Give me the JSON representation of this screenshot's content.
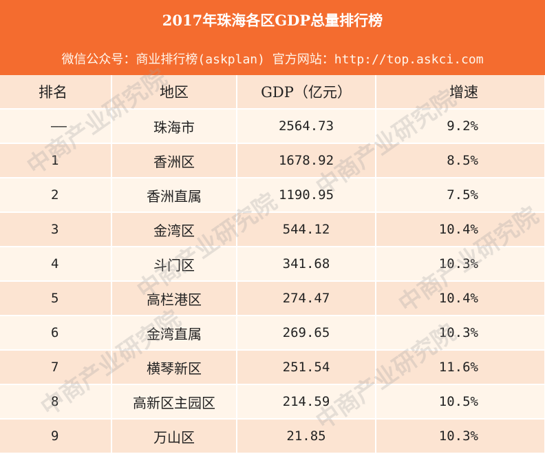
{
  "header": {
    "title": "2017年珠海各区GDP总量排行榜",
    "subtitle": "微信公众号：商业排行榜(askplan)    官方网站：http://top.askci.com",
    "bg_color": "#f46c2f"
  },
  "table": {
    "columns": [
      "排名",
      "地区",
      "GDP（亿元）",
      "增速"
    ],
    "rows": [
      {
        "rank": "——",
        "region": "珠海市",
        "gdp": "2564.73",
        "growth": "9.2%"
      },
      {
        "rank": "1",
        "region": "香洲区",
        "gdp": "1678.92",
        "growth": "8.5%"
      },
      {
        "rank": "2",
        "region": "香洲直属",
        "gdp": "1190.95",
        "growth": "7.5%"
      },
      {
        "rank": "3",
        "region": "金湾区",
        "gdp": "544.12",
        "growth": "10.4%"
      },
      {
        "rank": "4",
        "region": "斗门区",
        "gdp": "341.68",
        "growth": "10.3%"
      },
      {
        "rank": "5",
        "region": "高栏港区",
        "gdp": "274.47",
        "growth": "10.4%"
      },
      {
        "rank": "6",
        "region": "金湾直属",
        "gdp": "269.65",
        "growth": "10.3%"
      },
      {
        "rank": "7",
        "region": "横琴新区",
        "gdp": "251.54",
        "growth": "11.6%"
      },
      {
        "rank": "8",
        "region": "高新区主园区",
        "gdp": "214.59",
        "growth": "10.5%"
      },
      {
        "rank": "9",
        "region": "万山区",
        "gdp": "21.85",
        "growth": "10.3%"
      }
    ]
  },
  "watermark": "中商产业研究院"
}
